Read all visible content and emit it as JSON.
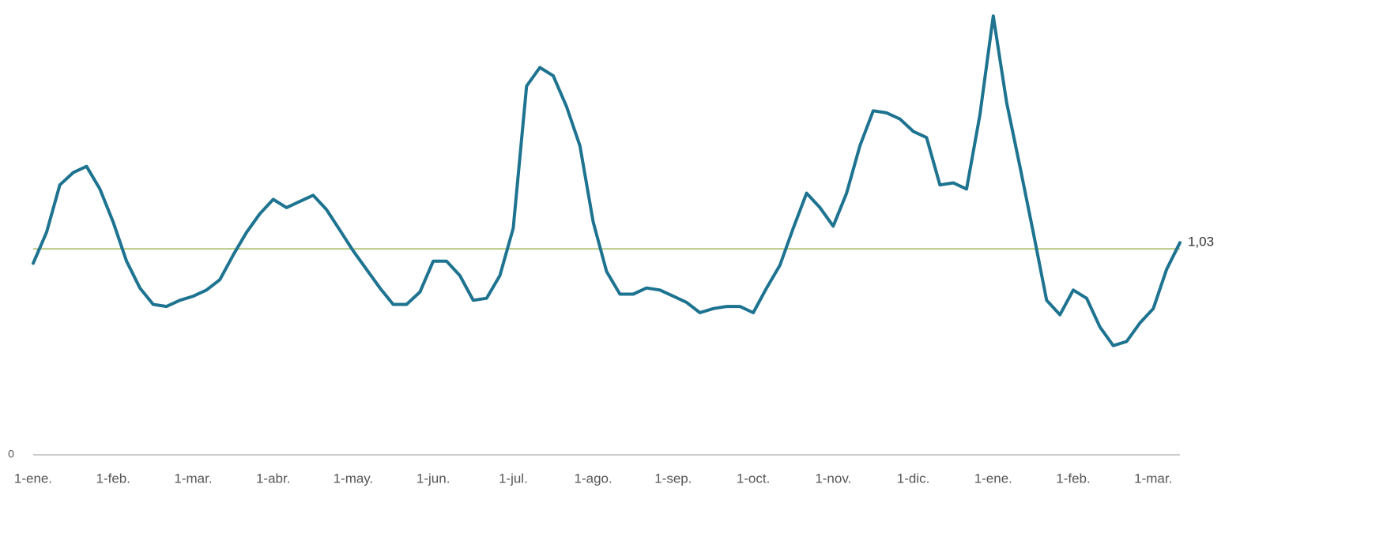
{
  "chart_data": {
    "type": "line",
    "categories": [
      "1-ene.",
      null,
      null,
      null,
      null,
      null,
      "1-feb.",
      null,
      null,
      null,
      null,
      null,
      "1-mar.",
      null,
      null,
      null,
      null,
      null,
      "1-abr.",
      null,
      null,
      null,
      null,
      null,
      "1-may.",
      null,
      null,
      null,
      null,
      null,
      "1-jun.",
      null,
      null,
      null,
      null,
      null,
      "1-jul.",
      null,
      null,
      null,
      null,
      null,
      "1-ago.",
      null,
      null,
      null,
      null,
      null,
      "1-sep.",
      null,
      null,
      null,
      null,
      null,
      "1-oct.",
      null,
      null,
      null,
      null,
      null,
      "1-nov.",
      null,
      null,
      null,
      null,
      null,
      "1-dic.",
      null,
      null,
      null,
      null,
      null,
      "1-ene.",
      null,
      null,
      null,
      null,
      null,
      "1-feb.",
      null,
      null,
      null,
      null,
      null,
      "1-mar.",
      null,
      null
    ],
    "series": [
      {
        "color": "#1d7390",
        "values": [
          0.93,
          1.08,
          1.31,
          1.37,
          1.4,
          1.29,
          1.13,
          0.94,
          0.81,
          0.73,
          0.72,
          0.75,
          0.77,
          0.8,
          0.85,
          0.97,
          1.08,
          1.17,
          1.24,
          1.2,
          1.23,
          1.26,
          1.19,
          1.09,
          0.99,
          0.9,
          0.81,
          0.73,
          0.73,
          0.79,
          0.94,
          0.94,
          0.87,
          0.75,
          0.76,
          0.87,
          1.1,
          1.79,
          1.88,
          1.84,
          1.69,
          1.5,
          1.13,
          0.89,
          0.78,
          0.78,
          0.81,
          0.8,
          0.77,
          0.74,
          0.69,
          0.71,
          0.72,
          0.72,
          0.69,
          0.81,
          0.92,
          1.1,
          1.27,
          1.2,
          1.11,
          1.27,
          1.5,
          1.67,
          1.66,
          1.63,
          1.57,
          1.54,
          1.31,
          1.32,
          1.29,
          1.65,
          2.13,
          1.71,
          1.4,
          1.08,
          0.75,
          0.68,
          0.8,
          0.76,
          0.62,
          0.53,
          0.55,
          0.64,
          0.71,
          0.9,
          1.03
        ],
        "value_labels": [
          null,
          null,
          null,
          null,
          null,
          null,
          null,
          null,
          null,
          null,
          null,
          null,
          null,
          null,
          null,
          null,
          null,
          null,
          null,
          null,
          null,
          null,
          null,
          null,
          null,
          null,
          null,
          null,
          null,
          null,
          null,
          null,
          null,
          null,
          null,
          null,
          null,
          null,
          null,
          null,
          null,
          null,
          null,
          null,
          null,
          null,
          null,
          null,
          null,
          null,
          null,
          null,
          null,
          null,
          null,
          null,
          null,
          null,
          null,
          null,
          null,
          null,
          null,
          null,
          null,
          null,
          null,
          null,
          null,
          null,
          null,
          null,
          null,
          null,
          null,
          null,
          null,
          null,
          null,
          null,
          null,
          null,
          null,
          null,
          null,
          null,
          "1,03"
        ]
      }
    ],
    "reference_line": 1,
    "reference_color": "#8faa3c",
    "ylim": [
      0,
      2.2
    ],
    "yticks": [
      0
    ]
  }
}
